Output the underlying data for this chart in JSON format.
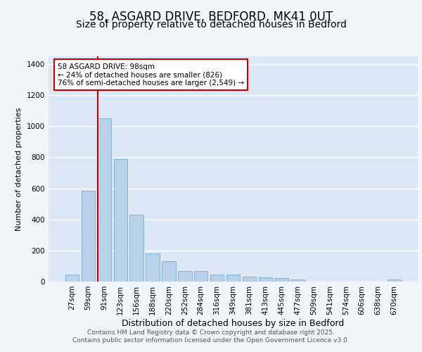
{
  "title1": "58, ASGARD DRIVE, BEDFORD, MK41 0UT",
  "title2": "Size of property relative to detached houses in Bedford",
  "xlabel": "Distribution of detached houses by size in Bedford",
  "ylabel": "Number of detached properties",
  "categories": [
    "27sqm",
    "59sqm",
    "91sqm",
    "123sqm",
    "156sqm",
    "188sqm",
    "220sqm",
    "252sqm",
    "284sqm",
    "316sqm",
    "349sqm",
    "381sqm",
    "413sqm",
    "445sqm",
    "477sqm",
    "509sqm",
    "541sqm",
    "574sqm",
    "606sqm",
    "638sqm",
    "670sqm"
  ],
  "values": [
    45,
    585,
    1050,
    790,
    430,
    180,
    130,
    70,
    68,
    45,
    45,
    30,
    27,
    22,
    12,
    0,
    0,
    0,
    0,
    0,
    12
  ],
  "bar_color": "#b8d0e8",
  "bar_edge_color": "#7aadd4",
  "red_line_x": 1.575,
  "annotation_text": "58 ASGARD DRIVE: 98sqm\n← 24% of detached houses are smaller (826)\n76% of semi-detached houses are larger (2,549) →",
  "annotation_box_color": "#ffffff",
  "annotation_box_edge": "#cc0000",
  "red_line_color": "#cc0000",
  "bg_color": "#dce8f5",
  "grid_color": "#ffffff",
  "fig_bg_color": "#f0f5fc",
  "ylim": [
    0,
    1450
  ],
  "yticks": [
    0,
    200,
    400,
    600,
    800,
    1000,
    1200,
    1400
  ],
  "footnote1": "Contains HM Land Registry data © Crown copyright and database right 2025.",
  "footnote2": "Contains public sector information licensed under the Open Government Licence v3.0.",
  "title1_fontsize": 12,
  "title2_fontsize": 10,
  "xlabel_fontsize": 9,
  "ylabel_fontsize": 8,
  "tick_fontsize": 7.5,
  "annotation_fontsize": 7.5,
  "footnote_fontsize": 6.5
}
